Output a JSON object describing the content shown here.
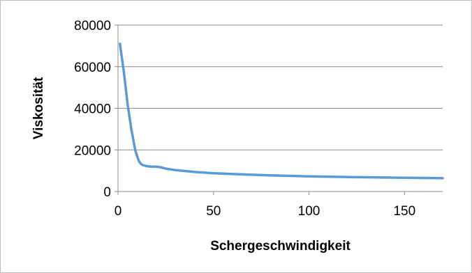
{
  "chart_data": {
    "type": "line",
    "title": "",
    "xlabel": "Schergeschwindigkeit",
    "ylabel": "Viskosität",
    "xlim": [
      0,
      170
    ],
    "ylim": [
      0,
      80000
    ],
    "xticks": [
      0,
      50,
      100,
      150
    ],
    "yticks": [
      0,
      20000,
      40000,
      60000,
      80000
    ],
    "grid": "horizontal",
    "legend": "none",
    "series": [
      {
        "color": "#5b9bd5",
        "x": [
          1,
          3,
          5,
          7,
          9,
          10,
          11,
          12,
          13,
          15,
          18,
          20,
          22,
          25,
          30,
          40,
          50,
          60,
          75,
          100,
          125,
          150,
          170
        ],
        "y": [
          71000,
          58000,
          42000,
          30000,
          20000,
          17000,
          14500,
          13300,
          12700,
          12200,
          11900,
          11900,
          11700,
          11000,
          10300,
          9400,
          8800,
          8400,
          7900,
          7300,
          6900,
          6600,
          6400
        ]
      }
    ]
  }
}
